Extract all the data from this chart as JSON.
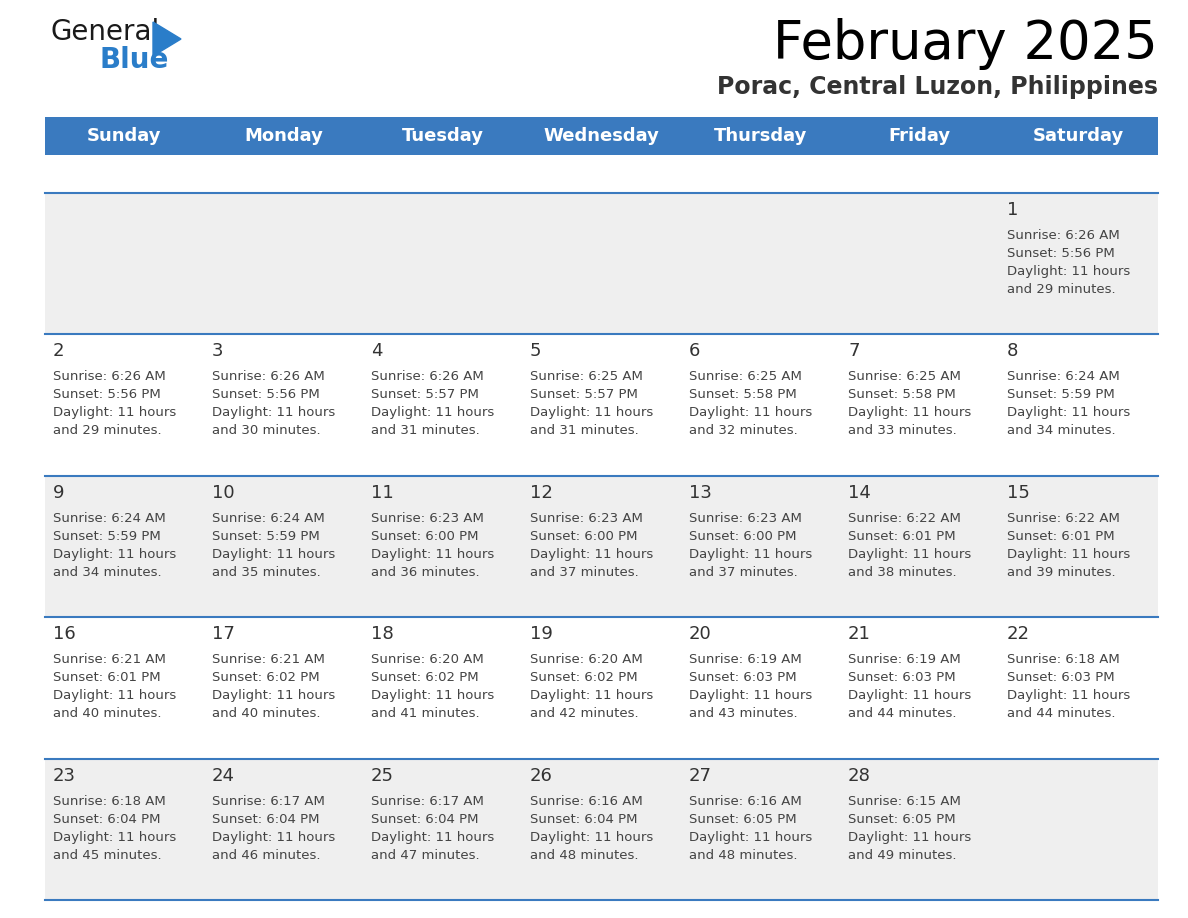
{
  "title": "February 2025",
  "subtitle": "Porac, Central Luzon, Philippines",
  "days_of_week": [
    "Sunday",
    "Monday",
    "Tuesday",
    "Wednesday",
    "Thursday",
    "Friday",
    "Saturday"
  ],
  "header_bg": "#3a7abf",
  "header_text": "#ffffff",
  "cell_bg_odd": "#efefef",
  "cell_bg_even": "#ffffff",
  "line_color": "#3a7abf",
  "text_color": "#444444",
  "day_num_color": "#333333",
  "calendar_data": [
    [
      null,
      null,
      null,
      null,
      null,
      null,
      {
        "day": 1,
        "sunrise": "6:26 AM",
        "sunset": "5:56 PM",
        "daylight_hours": 11,
        "daylight_minutes": 29
      }
    ],
    [
      {
        "day": 2,
        "sunrise": "6:26 AM",
        "sunset": "5:56 PM",
        "daylight_hours": 11,
        "daylight_minutes": 29
      },
      {
        "day": 3,
        "sunrise": "6:26 AM",
        "sunset": "5:56 PM",
        "daylight_hours": 11,
        "daylight_minutes": 30
      },
      {
        "day": 4,
        "sunrise": "6:26 AM",
        "sunset": "5:57 PM",
        "daylight_hours": 11,
        "daylight_minutes": 31
      },
      {
        "day": 5,
        "sunrise": "6:25 AM",
        "sunset": "5:57 PM",
        "daylight_hours": 11,
        "daylight_minutes": 31
      },
      {
        "day": 6,
        "sunrise": "6:25 AM",
        "sunset": "5:58 PM",
        "daylight_hours": 11,
        "daylight_minutes": 32
      },
      {
        "day": 7,
        "sunrise": "6:25 AM",
        "sunset": "5:58 PM",
        "daylight_hours": 11,
        "daylight_minutes": 33
      },
      {
        "day": 8,
        "sunrise": "6:24 AM",
        "sunset": "5:59 PM",
        "daylight_hours": 11,
        "daylight_minutes": 34
      }
    ],
    [
      {
        "day": 9,
        "sunrise": "6:24 AM",
        "sunset": "5:59 PM",
        "daylight_hours": 11,
        "daylight_minutes": 34
      },
      {
        "day": 10,
        "sunrise": "6:24 AM",
        "sunset": "5:59 PM",
        "daylight_hours": 11,
        "daylight_minutes": 35
      },
      {
        "day": 11,
        "sunrise": "6:23 AM",
        "sunset": "6:00 PM",
        "daylight_hours": 11,
        "daylight_minutes": 36
      },
      {
        "day": 12,
        "sunrise": "6:23 AM",
        "sunset": "6:00 PM",
        "daylight_hours": 11,
        "daylight_minutes": 37
      },
      {
        "day": 13,
        "sunrise": "6:23 AM",
        "sunset": "6:00 PM",
        "daylight_hours": 11,
        "daylight_minutes": 37
      },
      {
        "day": 14,
        "sunrise": "6:22 AM",
        "sunset": "6:01 PM",
        "daylight_hours": 11,
        "daylight_minutes": 38
      },
      {
        "day": 15,
        "sunrise": "6:22 AM",
        "sunset": "6:01 PM",
        "daylight_hours": 11,
        "daylight_minutes": 39
      }
    ],
    [
      {
        "day": 16,
        "sunrise": "6:21 AM",
        "sunset": "6:01 PM",
        "daylight_hours": 11,
        "daylight_minutes": 40
      },
      {
        "day": 17,
        "sunrise": "6:21 AM",
        "sunset": "6:02 PM",
        "daylight_hours": 11,
        "daylight_minutes": 40
      },
      {
        "day": 18,
        "sunrise": "6:20 AM",
        "sunset": "6:02 PM",
        "daylight_hours": 11,
        "daylight_minutes": 41
      },
      {
        "day": 19,
        "sunrise": "6:20 AM",
        "sunset": "6:02 PM",
        "daylight_hours": 11,
        "daylight_minutes": 42
      },
      {
        "day": 20,
        "sunrise": "6:19 AM",
        "sunset": "6:03 PM",
        "daylight_hours": 11,
        "daylight_minutes": 43
      },
      {
        "day": 21,
        "sunrise": "6:19 AM",
        "sunset": "6:03 PM",
        "daylight_hours": 11,
        "daylight_minutes": 44
      },
      {
        "day": 22,
        "sunrise": "6:18 AM",
        "sunset": "6:03 PM",
        "daylight_hours": 11,
        "daylight_minutes": 44
      }
    ],
    [
      {
        "day": 23,
        "sunrise": "6:18 AM",
        "sunset": "6:04 PM",
        "daylight_hours": 11,
        "daylight_minutes": 45
      },
      {
        "day": 24,
        "sunrise": "6:17 AM",
        "sunset": "6:04 PM",
        "daylight_hours": 11,
        "daylight_minutes": 46
      },
      {
        "day": 25,
        "sunrise": "6:17 AM",
        "sunset": "6:04 PM",
        "daylight_hours": 11,
        "daylight_minutes": 47
      },
      {
        "day": 26,
        "sunrise": "6:16 AM",
        "sunset": "6:04 PM",
        "daylight_hours": 11,
        "daylight_minutes": 48
      },
      {
        "day": 27,
        "sunrise": "6:16 AM",
        "sunset": "6:05 PM",
        "daylight_hours": 11,
        "daylight_minutes": 48
      },
      {
        "day": 28,
        "sunrise": "6:15 AM",
        "sunset": "6:05 PM",
        "daylight_hours": 11,
        "daylight_minutes": 49
      },
      null
    ]
  ],
  "logo_general_color": "#1a1a1a",
  "logo_blue_color": "#2a7dc9",
  "logo_triangle_color": "#2a7dc9",
  "title_fontsize": 38,
  "subtitle_fontsize": 17,
  "header_fontsize": 13,
  "day_num_fontsize": 13,
  "cell_text_fontsize": 9.5
}
